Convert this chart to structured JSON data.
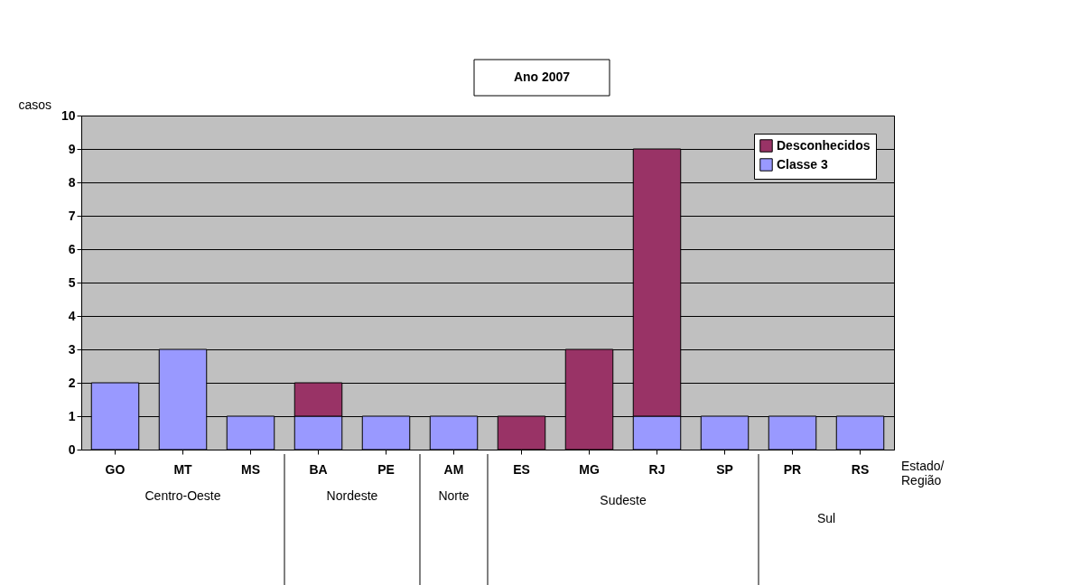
{
  "chart_data": {
    "type": "bar",
    "title": "Ano 2007",
    "ylabel": "casos",
    "xlabel": "Estado/\nRegião",
    "categories": [
      "GO",
      "MT",
      "MS",
      "BA",
      "PE",
      "AM",
      "ES",
      "MG",
      "RJ",
      "SP",
      "PR",
      "RS"
    ],
    "series": [
      {
        "name": "Classe 3",
        "color": "#9999ff",
        "values": [
          2,
          3,
          1,
          1,
          1,
          1,
          0,
          0,
          1,
          1,
          1,
          1
        ]
      },
      {
        "name": "Desconhecidos",
        "color": "#993366",
        "values": [
          0,
          0,
          0,
          1,
          0,
          0,
          1,
          3,
          8,
          0,
          0,
          0
        ]
      }
    ],
    "stacked": true,
    "ylim": [
      0,
      10
    ],
    "yticks": [
      0,
      1,
      2,
      3,
      4,
      5,
      6,
      7,
      8,
      9,
      10
    ],
    "grid": "y",
    "legend": "top right",
    "annotations": [
      "Centro-Oeste",
      "Nordeste",
      "Norte",
      "Sudeste",
      "Sul"
    ]
  }
}
